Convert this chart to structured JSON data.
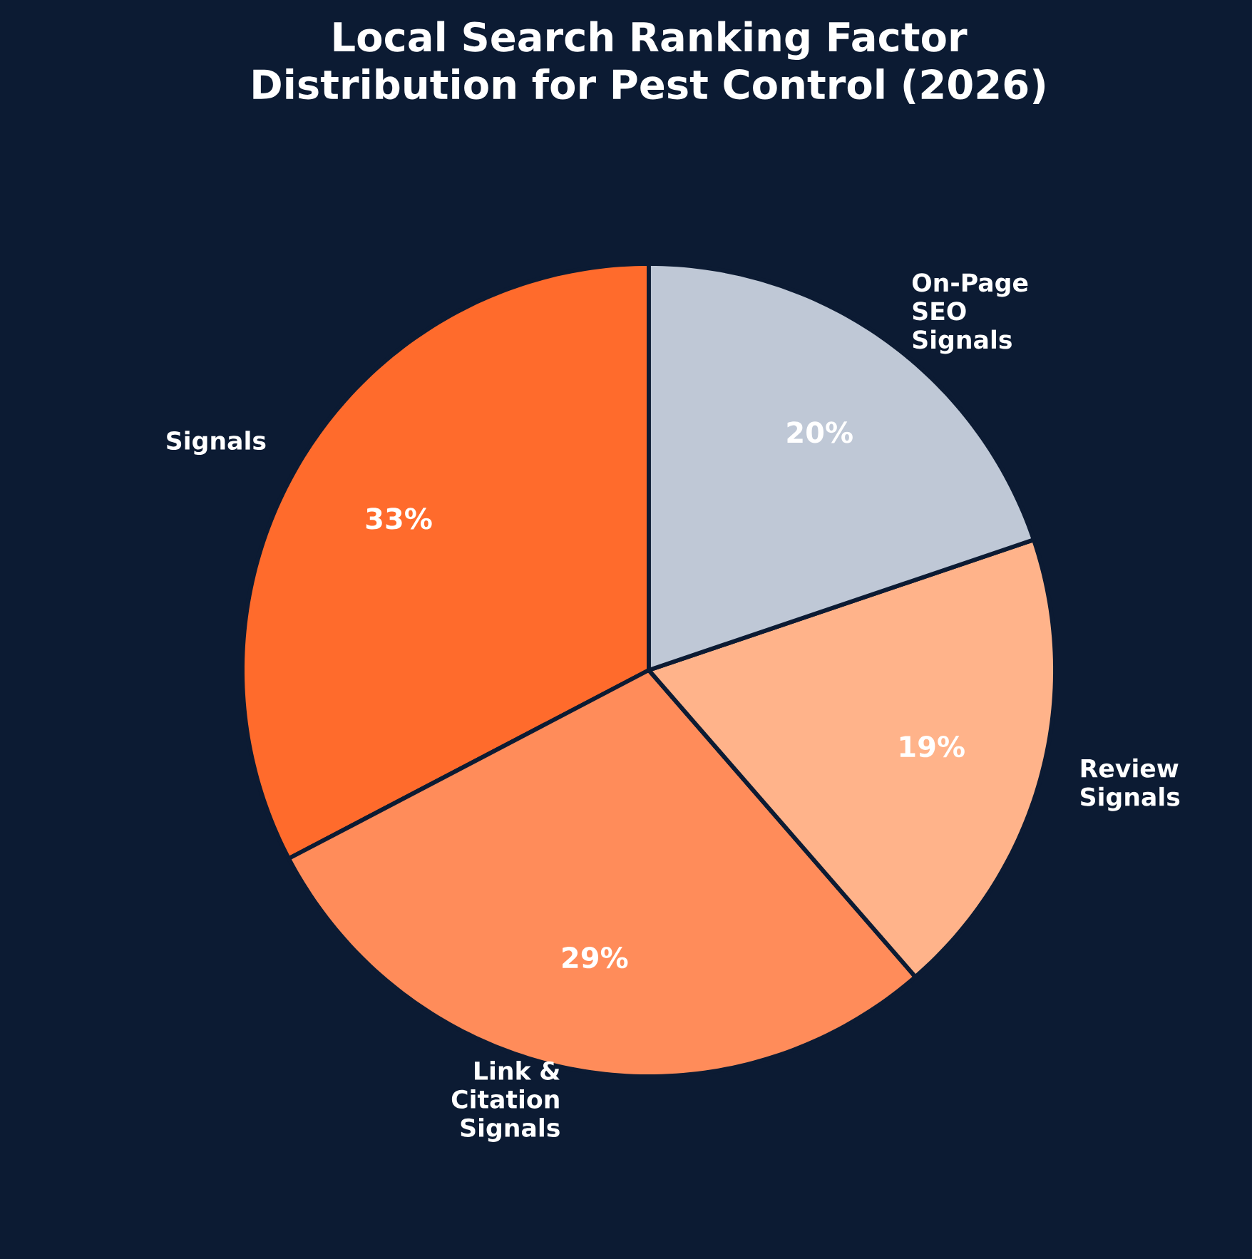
{
  "chart_data": {
    "type": "pie",
    "title": "Local Search Ranking Factor Distribution for Pest Control (2026)",
    "categories": [
      "Signals",
      "Link & Citation Signals",
      "Review Signals",
      "On-Page SEO Signals"
    ],
    "values": [
      33,
      29,
      19,
      20
    ],
    "colors": [
      "#ff6b2c",
      "#ff8c5a",
      "#ffb38a",
      "#bfc8d6"
    ],
    "value_labels": [
      "33%",
      "29%",
      "19%",
      "20%"
    ]
  }
}
